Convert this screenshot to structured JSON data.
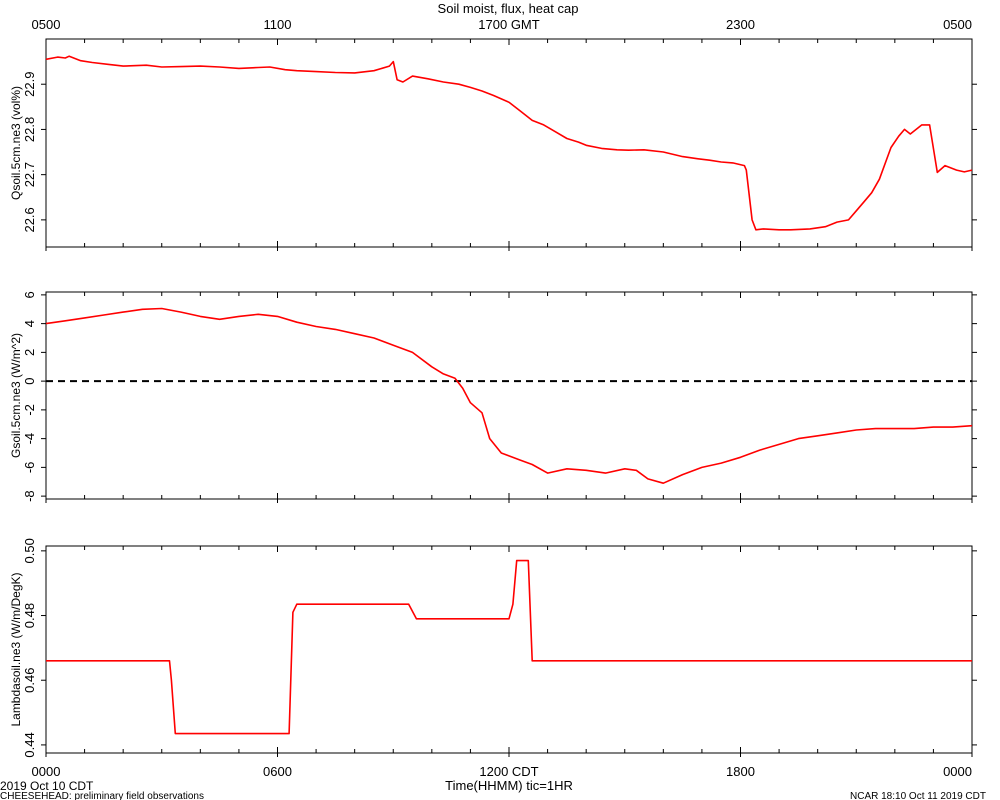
{
  "title": "Soil moist, flux, heat cap",
  "top_axis_labels": [
    "0500",
    "1100",
    "1700 GMT",
    "2300",
    "0500"
  ],
  "bottom_axis_labels": [
    "0000",
    "0600",
    "1200 CDT",
    "1800",
    "0000"
  ],
  "xlabel": "Time(HHMM)  tic=1HR",
  "footer": {
    "date": "2019 Oct 10 CDT",
    "project": "CHEESEHEAD: preliminary field observations",
    "stamp": "NCAR 18:10 Oct 11 2019 CDT"
  },
  "colors": {
    "line": "#ff0000",
    "axis": "#000000",
    "zero_line": "#000000"
  },
  "chart_data": [
    {
      "type": "line",
      "ylabel": "Qsoil.5cm.ne3 (vol%)",
      "x_unit": "hours since 0000 CDT",
      "xlim": [
        0,
        24
      ],
      "ylim": [
        22.54,
        23.0
      ],
      "yticks": [
        22.6,
        22.7,
        22.8,
        22.9
      ],
      "series": [
        {
          "color": "#ff0000",
          "x": [
            0,
            0.3,
            0.5,
            0.6,
            0.9,
            1.2,
            1.6,
            2.0,
            2.6,
            3.0,
            3.5,
            4.0,
            4.5,
            5.0,
            5.5,
            5.8,
            6.2,
            6.5,
            7.0,
            7.5,
            8.0,
            8.5,
            8.9,
            9.0,
            9.1,
            9.25,
            9.5,
            9.9,
            10.3,
            10.7,
            11.0,
            11.3,
            11.6,
            12.0,
            12.3,
            12.6,
            12.9,
            13.2,
            13.5,
            13.8,
            14.0,
            14.4,
            14.8,
            15.1,
            15.5,
            16.0,
            16.5,
            16.9,
            17.2,
            17.5,
            17.8,
            18.1,
            18.15,
            18.3,
            18.4,
            18.6,
            19.0,
            19.3,
            19.8,
            20.2,
            20.5,
            20.8,
            21.0,
            21.2,
            21.4,
            21.6,
            21.9,
            22.1,
            22.25,
            22.4,
            22.7,
            22.9,
            23.1,
            23.3,
            23.6,
            23.8,
            24.0
          ],
          "y": [
            22.955,
            22.96,
            22.958,
            22.962,
            22.952,
            22.948,
            22.944,
            22.94,
            22.942,
            22.938,
            22.939,
            22.94,
            22.938,
            22.935,
            22.937,
            22.938,
            22.932,
            22.93,
            22.928,
            22.926,
            22.925,
            22.93,
            22.94,
            22.95,
            22.91,
            22.905,
            22.918,
            22.912,
            22.905,
            22.9,
            22.893,
            22.885,
            22.875,
            22.86,
            22.84,
            22.82,
            22.81,
            22.795,
            22.78,
            22.772,
            22.765,
            22.758,
            22.755,
            22.754,
            22.755,
            22.75,
            22.74,
            22.735,
            22.732,
            22.728,
            22.726,
            22.72,
            22.71,
            22.6,
            22.578,
            22.58,
            22.578,
            22.578,
            22.58,
            22.585,
            22.595,
            22.6,
            22.62,
            22.64,
            22.66,
            22.69,
            22.76,
            22.785,
            22.8,
            22.79,
            22.81,
            22.81,
            22.705,
            22.72,
            22.71,
            22.706,
            22.71
          ]
        }
      ]
    },
    {
      "type": "line",
      "ylabel": "Gsoil.5cm.ne3 (W/m^2)",
      "x_unit": "hours since 0000 CDT",
      "xlim": [
        0,
        24
      ],
      "ylim": [
        -8.2,
        6.2
      ],
      "yticks": [
        -8,
        -6,
        -4,
        -2,
        0,
        2,
        4,
        6
      ],
      "reference_line": {
        "y": 0,
        "style": "dashed"
      },
      "series": [
        {
          "color": "#ff0000",
          "x": [
            0,
            0.5,
            1.0,
            1.5,
            2.0,
            2.5,
            3.0,
            3.5,
            4.0,
            4.5,
            5.0,
            5.5,
            6.0,
            6.5,
            7.0,
            7.5,
            8.0,
            8.5,
            9.0,
            9.5,
            10.0,
            10.3,
            10.6,
            10.8,
            11.0,
            11.3,
            11.5,
            11.8,
            12.0,
            12.3,
            12.6,
            13.0,
            13.5,
            14.0,
            14.5,
            15.0,
            15.3,
            15.6,
            16.0,
            16.5,
            17.0,
            17.5,
            18.0,
            18.5,
            19.0,
            19.5,
            20.0,
            20.5,
            21.0,
            21.5,
            22.0,
            22.5,
            23.0,
            23.5,
            24.0
          ],
          "y": [
            4.0,
            4.2,
            4.4,
            4.6,
            4.8,
            5.0,
            5.05,
            4.8,
            4.5,
            4.3,
            4.5,
            4.65,
            4.5,
            4.1,
            3.8,
            3.6,
            3.3,
            3.0,
            2.5,
            2.0,
            1.0,
            0.5,
            0.2,
            -0.5,
            -1.5,
            -2.2,
            -4.0,
            -5.0,
            -5.2,
            -5.5,
            -5.8,
            -6.4,
            -6.1,
            -6.2,
            -6.4,
            -6.1,
            -6.2,
            -6.8,
            -7.1,
            -6.5,
            -6.0,
            -5.7,
            -5.3,
            -4.8,
            -4.4,
            -4.0,
            -3.8,
            -3.6,
            -3.4,
            -3.3,
            -3.3,
            -3.3,
            -3.2,
            -3.2,
            -3.1
          ]
        }
      ]
    },
    {
      "type": "line",
      "ylabel": "Lambdasoil.ne3 (W/m/DegK)",
      "x_unit": "hours since 0000 CDT",
      "xlim": [
        0,
        24
      ],
      "ylim": [
        0.4375,
        0.5015
      ],
      "yticks": [
        0.44,
        0.46,
        0.48,
        0.5
      ],
      "series": [
        {
          "color": "#ff0000",
          "x": [
            0,
            3.2,
            3.25,
            3.35,
            6.3,
            6.4,
            6.5,
            9.4,
            9.6,
            12.0,
            12.1,
            12.2,
            12.5,
            12.6,
            24.0
          ],
          "y": [
            0.466,
            0.466,
            0.46,
            0.4435,
            0.4435,
            0.481,
            0.4835,
            0.4835,
            0.479,
            0.479,
            0.4835,
            0.497,
            0.497,
            0.466,
            0.466
          ]
        }
      ]
    }
  ]
}
